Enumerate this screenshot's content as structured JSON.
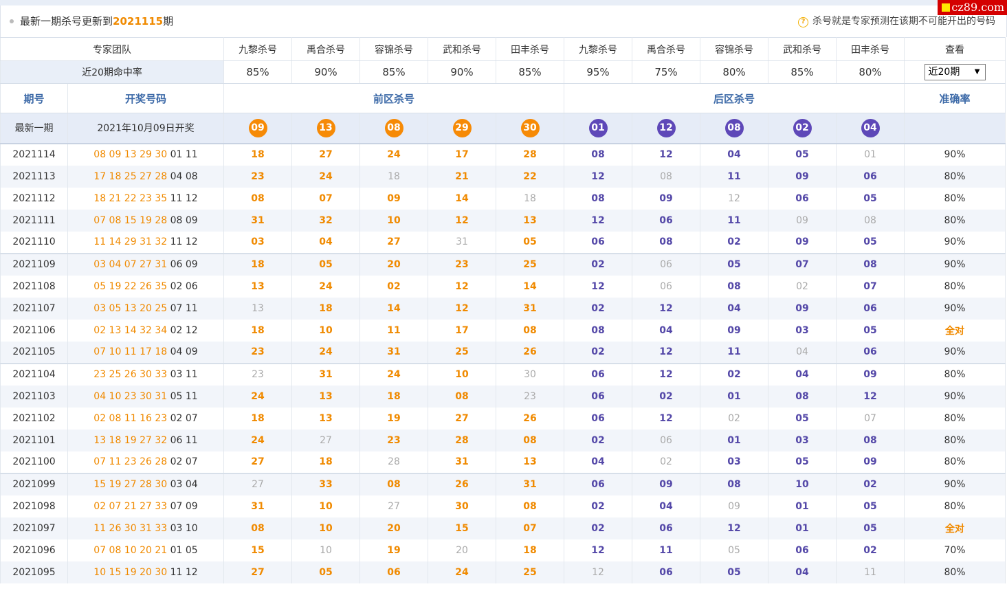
{
  "notice": {
    "prefix": "最新一期杀号更新到",
    "issue": "2021115",
    "suffix": "期",
    "help_text": "杀号就是专家预测在该期不可能开出的号码",
    "help_icon": "?"
  },
  "watermark": "cz89.com",
  "header": {
    "team_label": "专家团队",
    "experts": [
      "九黎杀号",
      "禹合杀号",
      "容锦杀号",
      "武和杀号",
      "田丰杀号",
      "九黎杀号",
      "禹合杀号",
      "容锦杀号",
      "武和杀号",
      "田丰杀号"
    ],
    "view_label": "查看"
  },
  "hitrate": {
    "label": "近20期命中率",
    "values": [
      "85%",
      "90%",
      "85%",
      "90%",
      "85%",
      "95%",
      "75%",
      "80%",
      "85%",
      "80%"
    ],
    "select_value": "近20期"
  },
  "columns": {
    "issue": "期号",
    "draw": "开奖号码",
    "front": "前区杀号",
    "back": "后区杀号",
    "accuracy": "准确率"
  },
  "latest": {
    "label": "最新一期",
    "draw_date": "2021年10月09日开奖",
    "front": [
      "09",
      "13",
      "08",
      "29",
      "30"
    ],
    "back": [
      "01",
      "12",
      "08",
      "02",
      "04"
    ]
  },
  "rows": [
    {
      "issue": "2021114",
      "draw_front": "08 09 13 29 30",
      "draw_back": "01 11",
      "front": [
        "18",
        "27",
        "24",
        "17",
        "28"
      ],
      "back": [
        "08",
        "12",
        "04",
        "05",
        "01"
      ],
      "hits": [
        0,
        0,
        0,
        0,
        0,
        0,
        0,
        0,
        0,
        1
      ],
      "accuracy": "90%"
    },
    {
      "issue": "2021113",
      "draw_front": "17 18 25 27 28",
      "draw_back": "04 08",
      "front": [
        "23",
        "24",
        "18",
        "21",
        "22"
      ],
      "back": [
        "12",
        "08",
        "11",
        "09",
        "06"
      ],
      "hits": [
        0,
        0,
        1,
        0,
        0,
        0,
        1,
        0,
        0,
        0
      ],
      "accuracy": "80%"
    },
    {
      "issue": "2021112",
      "draw_front": "18 21 22 23 35",
      "draw_back": "11 12",
      "front": [
        "08",
        "07",
        "09",
        "14",
        "18"
      ],
      "back": [
        "08",
        "09",
        "12",
        "06",
        "05"
      ],
      "hits": [
        0,
        0,
        0,
        0,
        1,
        0,
        0,
        1,
        0,
        0
      ],
      "accuracy": "80%"
    },
    {
      "issue": "2021111",
      "draw_front": "07 08 15 19 28",
      "draw_back": "08 09",
      "front": [
        "31",
        "32",
        "10",
        "12",
        "13"
      ],
      "back": [
        "12",
        "06",
        "11",
        "09",
        "08"
      ],
      "hits": [
        0,
        0,
        0,
        0,
        0,
        0,
        0,
        0,
        1,
        1
      ],
      "accuracy": "80%"
    },
    {
      "issue": "2021110",
      "draw_front": "11 14 29 31 32",
      "draw_back": "11 12",
      "front": [
        "03",
        "04",
        "27",
        "31",
        "05"
      ],
      "back": [
        "06",
        "08",
        "02",
        "09",
        "05"
      ],
      "hits": [
        0,
        0,
        0,
        1,
        0,
        0,
        0,
        0,
        0,
        0
      ],
      "accuracy": "90%"
    },
    {
      "issue": "2021109",
      "draw_front": "03 04 07 27 31",
      "draw_back": "06 09",
      "front": [
        "18",
        "05",
        "20",
        "23",
        "25"
      ],
      "back": [
        "02",
        "06",
        "05",
        "07",
        "08"
      ],
      "hits": [
        0,
        0,
        0,
        0,
        0,
        0,
        1,
        0,
        0,
        0
      ],
      "accuracy": "90%"
    },
    {
      "issue": "2021108",
      "draw_front": "05 19 22 26 35",
      "draw_back": "02 06",
      "front": [
        "13",
        "24",
        "02",
        "12",
        "14"
      ],
      "back": [
        "12",
        "06",
        "08",
        "02",
        "07"
      ],
      "hits": [
        0,
        0,
        0,
        0,
        0,
        0,
        1,
        0,
        1,
        0
      ],
      "accuracy": "80%"
    },
    {
      "issue": "2021107",
      "draw_front": "03 05 13 20 25",
      "draw_back": "07 11",
      "front": [
        "13",
        "18",
        "14",
        "12",
        "31"
      ],
      "back": [
        "02",
        "12",
        "04",
        "09",
        "06"
      ],
      "hits": [
        1,
        0,
        0,
        0,
        0,
        0,
        0,
        0,
        0,
        0
      ],
      "accuracy": "90%"
    },
    {
      "issue": "2021106",
      "draw_front": "02 13 14 32 34",
      "draw_back": "02 12",
      "front": [
        "18",
        "10",
        "11",
        "17",
        "08"
      ],
      "back": [
        "08",
        "04",
        "09",
        "03",
        "05"
      ],
      "hits": [
        0,
        0,
        0,
        0,
        0,
        0,
        0,
        0,
        0,
        0
      ],
      "accuracy": "全对"
    },
    {
      "issue": "2021105",
      "draw_front": "07 10 11 17 18",
      "draw_back": "04 09",
      "front": [
        "23",
        "24",
        "31",
        "25",
        "26"
      ],
      "back": [
        "02",
        "12",
        "11",
        "04",
        "06"
      ],
      "hits": [
        0,
        0,
        0,
        0,
        0,
        0,
        0,
        0,
        1,
        0
      ],
      "accuracy": "90%"
    },
    {
      "issue": "2021104",
      "draw_front": "23 25 26 30 33",
      "draw_back": "03 11",
      "front": [
        "23",
        "31",
        "24",
        "10",
        "30"
      ],
      "back": [
        "06",
        "12",
        "02",
        "04",
        "09"
      ],
      "hits": [
        1,
        0,
        0,
        0,
        1,
        0,
        0,
        0,
        0,
        0
      ],
      "accuracy": "80%"
    },
    {
      "issue": "2021103",
      "draw_front": "04 10 23 30 31",
      "draw_back": "05 11",
      "front": [
        "24",
        "13",
        "18",
        "08",
        "23"
      ],
      "back": [
        "06",
        "02",
        "01",
        "08",
        "12"
      ],
      "hits": [
        0,
        0,
        0,
        0,
        1,
        0,
        0,
        0,
        0,
        0
      ],
      "accuracy": "90%"
    },
    {
      "issue": "2021102",
      "draw_front": "02 08 11 16 23",
      "draw_back": "02 07",
      "front": [
        "18",
        "13",
        "19",
        "27",
        "26"
      ],
      "back": [
        "06",
        "12",
        "02",
        "05",
        "07"
      ],
      "hits": [
        0,
        0,
        0,
        0,
        0,
        0,
        0,
        1,
        0,
        1
      ],
      "accuracy": "80%"
    },
    {
      "issue": "2021101",
      "draw_front": "13 18 19 27 32",
      "draw_back": "06 11",
      "front": [
        "24",
        "27",
        "23",
        "28",
        "08"
      ],
      "back": [
        "02",
        "06",
        "01",
        "03",
        "08"
      ],
      "hits": [
        0,
        1,
        0,
        0,
        0,
        0,
        1,
        0,
        0,
        0
      ],
      "accuracy": "80%"
    },
    {
      "issue": "2021100",
      "draw_front": "07 11 23 26 28",
      "draw_back": "02 07",
      "front": [
        "27",
        "18",
        "28",
        "31",
        "13"
      ],
      "back": [
        "04",
        "02",
        "03",
        "05",
        "09"
      ],
      "hits": [
        0,
        0,
        1,
        0,
        0,
        0,
        1,
        0,
        0,
        0
      ],
      "accuracy": "80%"
    },
    {
      "issue": "2021099",
      "draw_front": "15 19 27 28 30",
      "draw_back": "03 04",
      "front": [
        "27",
        "33",
        "08",
        "26",
        "31"
      ],
      "back": [
        "06",
        "09",
        "08",
        "10",
        "02"
      ],
      "hits": [
        1,
        0,
        0,
        0,
        0,
        0,
        0,
        0,
        0,
        0
      ],
      "accuracy": "90%"
    },
    {
      "issue": "2021098",
      "draw_front": "02 07 21 27 33",
      "draw_back": "07 09",
      "front": [
        "31",
        "10",
        "27",
        "30",
        "08"
      ],
      "back": [
        "02",
        "04",
        "09",
        "01",
        "05"
      ],
      "hits": [
        0,
        0,
        1,
        0,
        0,
        0,
        0,
        1,
        0,
        0
      ],
      "accuracy": "80%"
    },
    {
      "issue": "2021097",
      "draw_front": "11 26 30 31 33",
      "draw_back": "03 10",
      "front": [
        "08",
        "10",
        "20",
        "15",
        "07"
      ],
      "back": [
        "02",
        "06",
        "12",
        "01",
        "05"
      ],
      "hits": [
        0,
        0,
        0,
        0,
        0,
        0,
        0,
        0,
        0,
        0
      ],
      "accuracy": "全对"
    },
    {
      "issue": "2021096",
      "draw_front": "07 08 10 20 21",
      "draw_back": "01 05",
      "front": [
        "15",
        "10",
        "19",
        "20",
        "18"
      ],
      "back": [
        "12",
        "11",
        "05",
        "06",
        "02"
      ],
      "hits": [
        0,
        1,
        0,
        1,
        0,
        0,
        0,
        1,
        0,
        0
      ],
      "accuracy": "70%"
    },
    {
      "issue": "2021095",
      "draw_front": "10 15 19 20 30",
      "draw_back": "11 12",
      "front": [
        "27",
        "05",
        "06",
        "24",
        "25"
      ],
      "back": [
        "12",
        "06",
        "05",
        "04",
        "11"
      ],
      "hits": [
        0,
        0,
        0,
        0,
        0,
        1,
        0,
        0,
        0,
        1
      ],
      "accuracy": "80%"
    }
  ],
  "colors": {
    "front_accent": "#f08a00",
    "back_accent": "#5448a8",
    "miss": "#aaaaaa",
    "header_text": "#3d6aa8"
  }
}
